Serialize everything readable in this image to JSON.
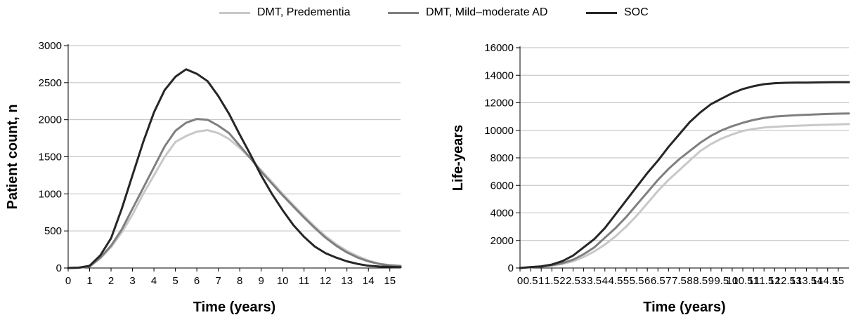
{
  "legend": {
    "items": [
      {
        "label": "DMT, Predementia",
        "color": "#c8c8c8"
      },
      {
        "label": "DMT, Mild–moderate AD",
        "color": "#7f7f7f"
      },
      {
        "label": "SOC",
        "color": "#262626"
      }
    ]
  },
  "chart_data": [
    {
      "type": "line",
      "title": "",
      "xlabel": "Time (years)",
      "ylabel": "Patient count, n",
      "xlim": [
        0,
        15.5
      ],
      "ylim": [
        0,
        3000
      ],
      "xticks": [
        0,
        1,
        2,
        3,
        4,
        5,
        6,
        7,
        8,
        9,
        10,
        11,
        12,
        13,
        14,
        15
      ],
      "yticks": [
        0,
        500,
        1000,
        1500,
        2000,
        2500,
        3000
      ],
      "grid": "horizontal",
      "legend": "top-center",
      "series": [
        {
          "name": "DMT, Predementia",
          "color": "#c8c8c8",
          "x": [
            0,
            0.5,
            1,
            1.5,
            2,
            2.5,
            3,
            3.5,
            4,
            4.5,
            5,
            5.5,
            6,
            6.5,
            7,
            7.5,
            8,
            8.5,
            9,
            9.5,
            10,
            10.5,
            11,
            11.5,
            12,
            12.5,
            13,
            13.5,
            14,
            14.5,
            15,
            15.5
          ],
          "y": [
            0,
            5,
            20,
            130,
            280,
            480,
            720,
            1000,
            1250,
            1500,
            1700,
            1780,
            1840,
            1860,
            1820,
            1740,
            1620,
            1480,
            1320,
            1160,
            1000,
            850,
            700,
            560,
            430,
            320,
            230,
            160,
            100,
            60,
            40,
            30
          ]
        },
        {
          "name": "DMT, Mild–moderate AD",
          "color": "#7f7f7f",
          "x": [
            0,
            0.5,
            1,
            1.5,
            2,
            2.5,
            3,
            3.5,
            4,
            4.5,
            5,
            5.5,
            6,
            6.5,
            7,
            7.5,
            8,
            8.5,
            9,
            9.5,
            10,
            10.5,
            11,
            11.5,
            12,
            12.5,
            13,
            13.5,
            14,
            14.5,
            15,
            15.5
          ],
          "y": [
            0,
            5,
            20,
            140,
            300,
            520,
            800,
            1080,
            1360,
            1640,
            1850,
            1960,
            2010,
            2000,
            1920,
            1820,
            1650,
            1480,
            1300,
            1140,
            980,
            830,
            680,
            540,
            410,
            300,
            210,
            140,
            90,
            55,
            35,
            25
          ]
        },
        {
          "name": "SOC",
          "color": "#262626",
          "x": [
            0,
            0.5,
            1,
            1.5,
            2,
            2.5,
            3,
            3.5,
            4,
            4.5,
            5,
            5.5,
            6,
            6.5,
            7,
            7.5,
            8,
            8.5,
            9,
            9.5,
            10,
            10.5,
            11,
            11.5,
            12,
            12.5,
            13,
            13.5,
            14,
            14.5,
            15,
            15.5
          ],
          "y": [
            0,
            5,
            30,
            170,
            400,
            800,
            1250,
            1700,
            2100,
            2400,
            2580,
            2680,
            2620,
            2520,
            2320,
            2080,
            1800,
            1530,
            1250,
            1000,
            780,
            580,
            420,
            290,
            200,
            140,
            90,
            55,
            30,
            20,
            15,
            10
          ]
        }
      ]
    },
    {
      "type": "line",
      "title": "",
      "xlabel": "Time (years)",
      "ylabel": "Life-years",
      "xlim": [
        0,
        15.5
      ],
      "ylim": [
        0,
        16000
      ],
      "xticks": [
        0,
        0.5,
        1,
        1.5,
        2,
        2.5,
        3,
        3.5,
        4,
        4.5,
        5,
        5.5,
        6,
        6.5,
        7,
        7.5,
        8,
        8.5,
        9,
        9.5,
        10,
        10.5,
        11,
        11.5,
        12,
        12.5,
        13,
        13.5,
        14,
        14.5,
        15
      ],
      "xtick_labels": [
        "0",
        "0.5",
        "1",
        "1.5",
        "2",
        "2.5",
        "3",
        "3.5",
        "4",
        "4.5",
        "5",
        "5.5",
        "6",
        "6.5",
        "7",
        "7.5",
        "8",
        "8.5",
        "9",
        "9.5",
        "10",
        "10.5",
        "11",
        "11.5",
        "12",
        "12.5",
        "13",
        "13.5",
        "14",
        "14.5",
        "15"
      ],
      "yticks": [
        0,
        2000,
        4000,
        6000,
        8000,
        10000,
        12000,
        14000,
        16000
      ],
      "grid": "horizontal",
      "legend": "top-center",
      "series": [
        {
          "name": "DMT, Predementia",
          "color": "#c8c8c8",
          "x": [
            0,
            0.5,
            1,
            1.5,
            2,
            2.5,
            3,
            3.5,
            4,
            4.5,
            5,
            5.5,
            6,
            6.5,
            7,
            7.5,
            8,
            8.5,
            9,
            9.5,
            10,
            10.5,
            11,
            11.5,
            12,
            12.5,
            13,
            13.5,
            14,
            14.5,
            15,
            15.5
          ],
          "y": [
            0,
            60,
            100,
            180,
            300,
            480,
            800,
            1200,
            1700,
            2300,
            3000,
            3800,
            4700,
            5600,
            6400,
            7100,
            7800,
            8500,
            9000,
            9400,
            9700,
            9950,
            10100,
            10200,
            10250,
            10300,
            10330,
            10360,
            10390,
            10410,
            10430,
            10450
          ]
        },
        {
          "name": "DMT, Mild–moderate AD",
          "color": "#7f7f7f",
          "x": [
            0,
            0.5,
            1,
            1.5,
            2,
            2.5,
            3,
            3.5,
            4,
            4.5,
            5,
            5.5,
            6,
            6.5,
            7,
            7.5,
            8,
            8.5,
            9,
            9.5,
            10,
            10.5,
            11,
            11.5,
            12,
            12.5,
            13,
            13.5,
            14,
            14.5,
            15,
            15.5
          ],
          "y": [
            0,
            60,
            100,
            200,
            350,
            600,
            1000,
            1500,
            2200,
            2900,
            3700,
            4600,
            5500,
            6400,
            7200,
            7900,
            8500,
            9100,
            9600,
            10000,
            10300,
            10550,
            10750,
            10900,
            11000,
            11050,
            11100,
            11130,
            11160,
            11190,
            11210,
            11220
          ]
        },
        {
          "name": "SOC",
          "color": "#262626",
          "x": [
            0,
            0.5,
            1,
            1.5,
            2,
            2.5,
            3,
            3.5,
            4,
            4.5,
            5,
            5.5,
            6,
            6.5,
            7,
            7.5,
            8,
            8.5,
            9,
            9.5,
            10,
            10.5,
            11,
            11.5,
            12,
            12.5,
            13,
            13.5,
            14,
            14.5,
            15,
            15.5
          ],
          "y": [
            0,
            60,
            120,
            250,
            500,
            900,
            1500,
            2100,
            2900,
            3900,
            4900,
            5900,
            6900,
            7800,
            8800,
            9700,
            10600,
            11300,
            11900,
            12300,
            12700,
            13000,
            13200,
            13350,
            13420,
            13450,
            13460,
            13470,
            13480,
            13490,
            13500,
            13500
          ]
        }
      ]
    }
  ]
}
